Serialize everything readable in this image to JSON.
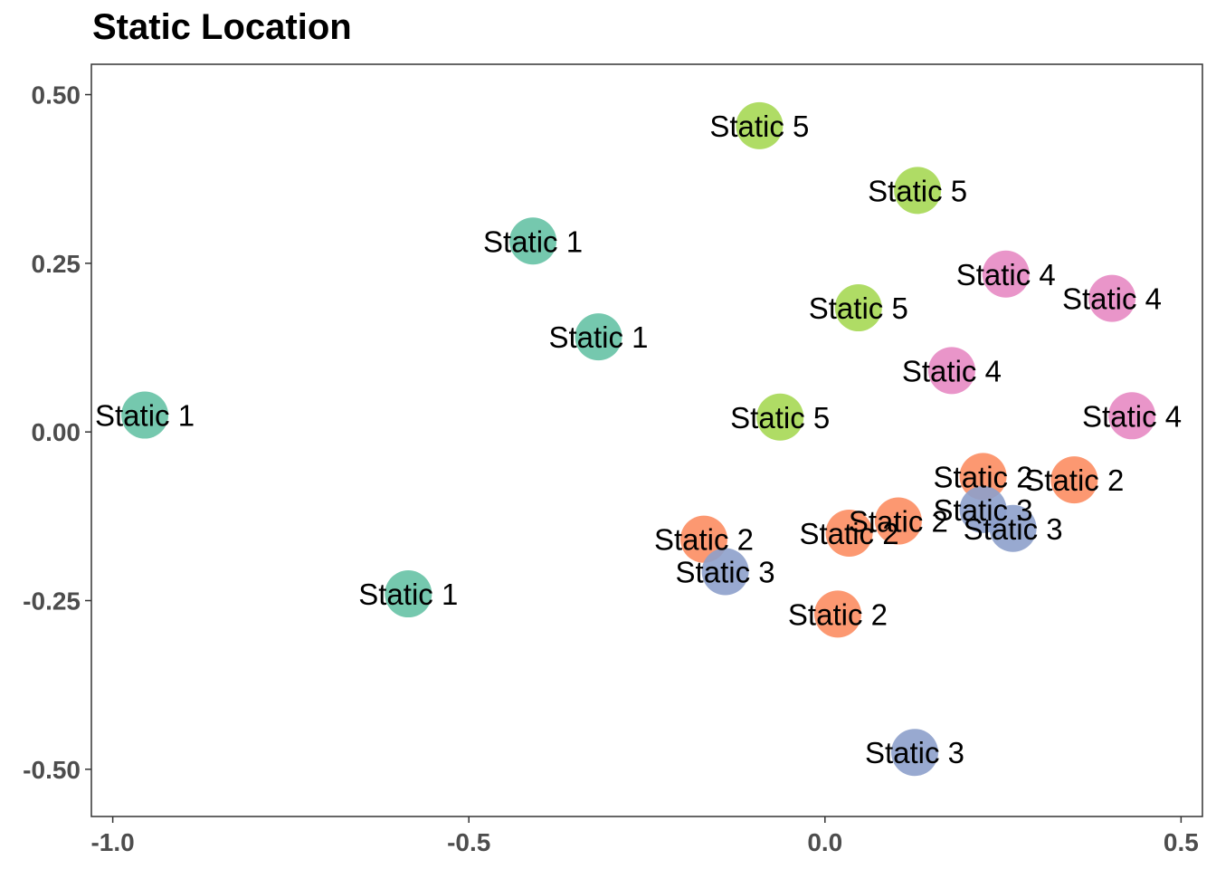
{
  "chart_data": {
    "type": "scatter",
    "title": "Static Location",
    "xlabel": "",
    "ylabel": "",
    "xlim": [
      -1.03,
      0.53
    ],
    "ylim": [
      -0.57,
      0.545
    ],
    "x_ticks": [
      -1.0,
      -0.5,
      0.0,
      0.5
    ],
    "x_tick_labels": [
      "-1.0",
      "-0.5",
      "0.0",
      "0.5"
    ],
    "y_ticks": [
      0.5,
      0.25,
      0.0,
      -0.25,
      -0.5
    ],
    "y_tick_labels": [
      "0.50",
      "0.25",
      "0.00",
      "-0.25",
      "-0.50"
    ],
    "grid": false,
    "legend": "none",
    "colors": {
      "Static 1": "#66c2a5",
      "Static 2": "#fc8d62",
      "Static 3": "#8da0cb",
      "Static 4": "#e78ac3",
      "Static 5": "#a6d854"
    },
    "points": [
      {
        "label": "Static 1",
        "x": -0.955,
        "y": 0.025
      },
      {
        "label": "Static 1",
        "x": -0.585,
        "y": -0.24
      },
      {
        "label": "Static 1",
        "x": -0.41,
        "y": 0.283
      },
      {
        "label": "Static 1",
        "x": -0.318,
        "y": 0.141
      },
      {
        "label": "Static 2",
        "x": -0.17,
        "y": -0.159
      },
      {
        "label": "Static 2",
        "x": 0.018,
        "y": -0.27
      },
      {
        "label": "Static 2",
        "x": 0.034,
        "y": -0.15
      },
      {
        "label": "Static 2",
        "x": 0.103,
        "y": -0.132
      },
      {
        "label": "Static 2",
        "x": 0.222,
        "y": -0.066
      },
      {
        "label": "Static 2",
        "x": 0.35,
        "y": -0.071
      },
      {
        "label": "Static 3",
        "x": -0.14,
        "y": -0.207
      },
      {
        "label": "Static 3",
        "x": 0.126,
        "y": -0.475
      },
      {
        "label": "Static 3",
        "x": 0.222,
        "y": -0.115
      },
      {
        "label": "Static 3",
        "x": 0.264,
        "y": -0.143
      },
      {
        "label": "Static 4",
        "x": 0.178,
        "y": 0.091
      },
      {
        "label": "Static 4",
        "x": 0.254,
        "y": 0.234
      },
      {
        "label": "Static 4",
        "x": 0.403,
        "y": 0.198
      },
      {
        "label": "Static 4",
        "x": 0.431,
        "y": 0.024
      },
      {
        "label": "Static 5",
        "x": -0.092,
        "y": 0.454
      },
      {
        "label": "Static 5",
        "x": -0.063,
        "y": 0.022
      },
      {
        "label": "Static 5",
        "x": 0.047,
        "y": 0.184
      },
      {
        "label": "Static 5",
        "x": 0.13,
        "y": 0.358
      }
    ]
  }
}
